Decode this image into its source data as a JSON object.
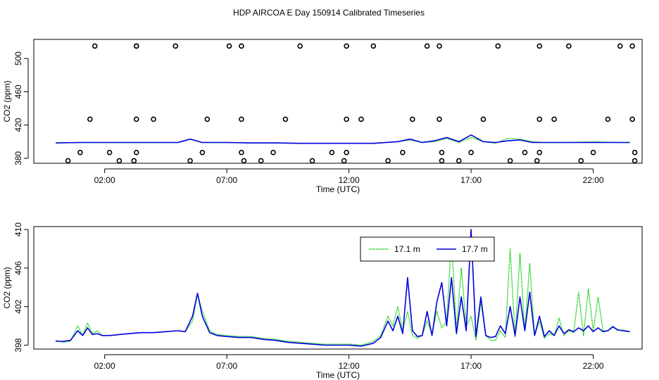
{
  "title": "HDP AIRCOA E  Day 150914  Calibrated Timeseries",
  "chart_data": [
    {
      "type": "line",
      "xlabel": "Time (UTC)",
      "ylabel": "CO2 (ppm)",
      "xticks": [
        "02:00",
        "07:00",
        "12:00",
        "17:00",
        "22:00"
      ],
      "xtick_values": [
        2,
        7,
        12,
        17,
        22
      ],
      "yticks": [
        380,
        420,
        460,
        500
      ],
      "xlim": [
        -0.9,
        24.0
      ],
      "ylim": [
        374,
        523
      ],
      "series": [
        {
          "color": "#00cc00",
          "dash": "dotted",
          "x": [
            0,
            1,
            2,
            3,
            4,
            4.5,
            5,
            5.5,
            6,
            7,
            8,
            9,
            10,
            11,
            12,
            13,
            14,
            14.5,
            15,
            15.5,
            16,
            16.5,
            17,
            17.5,
            18,
            18.5,
            19,
            19.5,
            20,
            21,
            22,
            23,
            23.5
          ],
          "y": [
            398.5,
            399,
            399,
            399,
            399,
            399,
            399,
            403,
            399,
            399,
            398.5,
            398.5,
            398,
            398,
            398,
            398,
            400,
            402,
            399,
            400,
            404,
            399,
            405,
            400,
            398,
            404,
            403,
            400,
            399,
            399,
            400,
            399,
            399
          ]
        },
        {
          "color": "#0000dd",
          "dash": "solid",
          "x": [
            0,
            1,
            2,
            3,
            4,
            4.5,
            5,
            5.5,
            6,
            7,
            8,
            9,
            10,
            11,
            12,
            13,
            14,
            14.5,
            15,
            15.5,
            16,
            16.5,
            17,
            17.5,
            18,
            18.5,
            19,
            19.5,
            20,
            21,
            22,
            23,
            23.5
          ],
          "y": [
            398.5,
            399,
            399,
            399,
            399,
            399,
            399,
            403,
            399,
            399,
            398.5,
            398.5,
            398,
            398,
            398,
            398,
            400,
            403,
            399,
            401,
            405,
            400,
            408,
            400,
            399,
            401,
            402,
            399,
            399,
            399,
            399,
            399,
            399
          ]
        }
      ],
      "scatter": {
        "x": [
          1.6,
          3.3,
          3.3,
          4.9,
          7.1,
          7.6,
          10.0,
          11.9,
          13.0,
          15.2,
          15.7,
          18.1,
          19.8,
          21.0,
          23.1,
          23.6,
          1.4,
          3.3,
          4.0,
          6.2,
          7.6,
          9.4,
          11.9,
          12.5,
          14.6,
          15.7,
          17.5,
          19.8,
          20.4,
          22.6,
          23.6,
          1.0,
          2.2,
          3.3,
          6.0,
          7.6,
          8.9,
          11.3,
          11.9,
          14.2,
          15.8,
          17.0,
          19.2,
          19.8,
          22.0,
          23.7,
          0.5,
          2.6,
          3.2,
          5.5,
          7.7,
          8.4,
          10.5,
          11.8,
          13.6,
          15.8,
          16.5,
          18.6,
          19.7,
          21.5,
          23.7
        ],
        "y": [
          515,
          515,
          515,
          515,
          515,
          515,
          515,
          515,
          515,
          515,
          515,
          515,
          515,
          515,
          515,
          515,
          427,
          427,
          427,
          427,
          427,
          427,
          427,
          427,
          427,
          427,
          427,
          427,
          427,
          427,
          427,
          387,
          387,
          387,
          387,
          387,
          387,
          387,
          387,
          387,
          387,
          387,
          387,
          387,
          387,
          387,
          377,
          377,
          377,
          377,
          377,
          377,
          377,
          377,
          377,
          377,
          377,
          377,
          377,
          377,
          377
        ]
      }
    },
    {
      "type": "line",
      "xlabel": "Time (UTC)",
      "ylabel": "CO2 (ppm)",
      "xticks": [
        "02:00",
        "07:00",
        "12:00",
        "17:00",
        "22:00"
      ],
      "xtick_values": [
        2,
        7,
        12,
        17,
        22
      ],
      "yticks": [
        398,
        402,
        406,
        410
      ],
      "xlim": [
        -0.9,
        24.0
      ],
      "ylim": [
        397.6,
        410.3
      ],
      "legend": {
        "entries": [
          "17.1 m",
          "17.7 m"
        ],
        "placement": "top-right"
      },
      "series": [
        {
          "name": "17.1 m",
          "color": "#00cc00",
          "dash": "dotted",
          "x": [
            0,
            0.3,
            0.6,
            0.9,
            1.1,
            1.3,
            1.5,
            1.7,
            1.9,
            2.2,
            2.6,
            3.0,
            3.5,
            4.0,
            4.5,
            5.0,
            5.3,
            5.6,
            5.8,
            6.0,
            6.3,
            6.6,
            7.0,
            7.5,
            8.0,
            8.5,
            9.0,
            9.5,
            10.0,
            10.5,
            11.0,
            11.5,
            12.0,
            12.5,
            13.0,
            13.3,
            13.6,
            13.8,
            14.0,
            14.2,
            14.4,
            14.6,
            14.8,
            15.0,
            15.2,
            15.4,
            15.6,
            15.8,
            16.0,
            16.2,
            16.4,
            16.6,
            16.8,
            17.0,
            17.2,
            17.4,
            17.6,
            17.8,
            18.0,
            18.2,
            18.4,
            18.6,
            18.8,
            19.0,
            19.2,
            19.4,
            19.6,
            19.8,
            20.0,
            20.2,
            20.4,
            20.6,
            20.8,
            21.0,
            21.2,
            21.4,
            21.6,
            21.8,
            22.0,
            22.2,
            22.4,
            22.6,
            22.8,
            23.0,
            23.2,
            23.5
          ],
          "y": [
            398.5,
            398.3,
            398.4,
            400.0,
            399.0,
            400.3,
            399.2,
            399.5,
            399.0,
            399.0,
            399.1,
            399.2,
            399.3,
            399.3,
            399.4,
            399.5,
            399.4,
            400.5,
            403.3,
            401.5,
            399.5,
            399.1,
            399.0,
            398.9,
            398.9,
            398.7,
            398.6,
            398.4,
            398.3,
            398.2,
            398.1,
            398.1,
            398.1,
            398.0,
            398.4,
            399.0,
            401.0,
            400.0,
            402.0,
            399.5,
            401.5,
            399.0,
            398.7,
            399.0,
            400.5,
            399.2,
            401.5,
            399.8,
            400.5,
            409.0,
            399.5,
            406.0,
            400.0,
            401.0,
            398.5,
            402.5,
            399.0,
            398.5,
            398.5,
            399.5,
            398.8,
            408.0,
            398.8,
            407.5,
            399.5,
            406.5,
            399.0,
            400.5,
            398.7,
            399.2,
            399.0,
            400.8,
            399.0,
            399.5,
            399.3,
            403.5,
            399.0,
            403.8,
            399.5,
            403.0,
            399.5,
            399.5,
            400.0,
            399.5,
            399.6,
            399.4
          ]
        },
        {
          "name": "17.7 m",
          "color": "#0000dd",
          "dash": "solid",
          "x": [
            0,
            0.3,
            0.6,
            0.9,
            1.1,
            1.3,
            1.5,
            1.7,
            1.9,
            2.2,
            2.6,
            3.0,
            3.5,
            4.0,
            4.5,
            5.0,
            5.3,
            5.6,
            5.8,
            6.0,
            6.3,
            6.6,
            7.0,
            7.5,
            8.0,
            8.5,
            9.0,
            9.5,
            10.0,
            10.5,
            11.0,
            11.5,
            12.0,
            12.5,
            13.0,
            13.3,
            13.6,
            13.8,
            14.0,
            14.2,
            14.4,
            14.6,
            14.8,
            15.0,
            15.2,
            15.4,
            15.6,
            15.8,
            16.0,
            16.2,
            16.4,
            16.6,
            16.8,
            17.0,
            17.2,
            17.4,
            17.6,
            17.8,
            18.0,
            18.2,
            18.4,
            18.6,
            18.8,
            19.0,
            19.2,
            19.4,
            19.6,
            19.8,
            20.0,
            20.2,
            20.4,
            20.6,
            20.8,
            21.0,
            21.2,
            21.4,
            21.6,
            21.8,
            22.0,
            22.2,
            22.4,
            22.6,
            22.8,
            23.0,
            23.2,
            23.5
          ],
          "y": [
            398.4,
            398.4,
            398.5,
            399.5,
            399.0,
            399.8,
            399.1,
            399.2,
            399.0,
            399.0,
            399.1,
            399.2,
            399.3,
            399.3,
            399.4,
            399.5,
            399.4,
            401.0,
            403.4,
            401.0,
            399.3,
            399.0,
            398.9,
            398.8,
            398.8,
            398.6,
            398.5,
            398.3,
            398.2,
            398.1,
            398.0,
            398.0,
            398.0,
            397.9,
            398.2,
            398.8,
            400.5,
            399.5,
            401.0,
            399.2,
            405.0,
            399.5,
            398.9,
            399.0,
            401.5,
            399.0,
            402.5,
            404.5,
            400.0,
            405.0,
            399.2,
            403.0,
            399.5,
            410.0,
            398.9,
            403.0,
            399.0,
            398.8,
            398.9,
            400.0,
            399.2,
            402.0,
            399.0,
            403.0,
            399.5,
            403.5,
            399.0,
            401.0,
            398.9,
            399.5,
            399.0,
            400.0,
            399.2,
            399.6,
            399.4,
            399.8,
            399.5,
            400.0,
            399.4,
            399.8,
            399.4,
            399.5,
            399.9,
            399.6,
            399.5,
            399.4
          ]
        }
      ]
    }
  ]
}
